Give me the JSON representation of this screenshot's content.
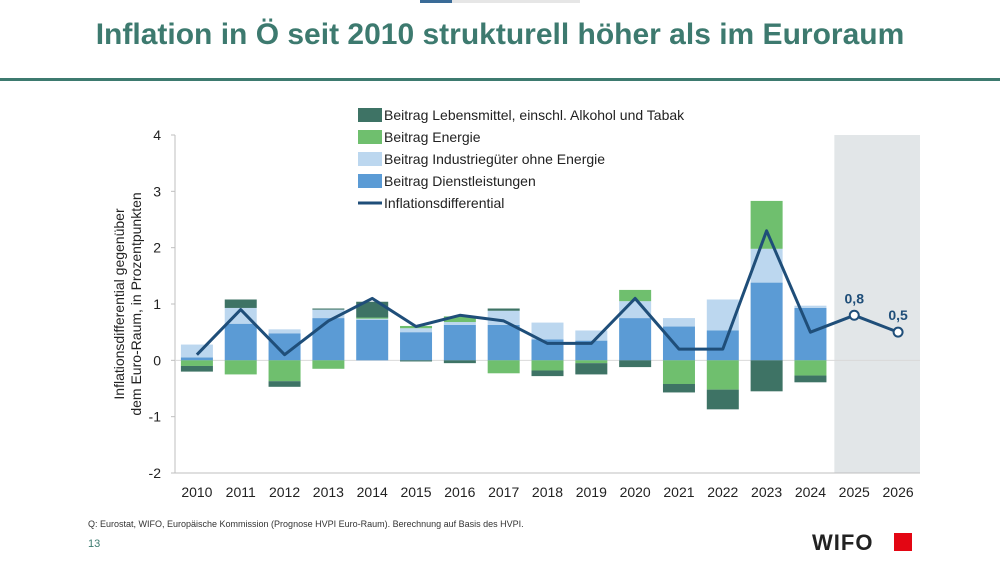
{
  "header": {
    "title": "Inflation in Ö seit 2010 strukturell höher als im Euroraum"
  },
  "footer": {
    "source": "Q: Eurostat, WIFO, Europäische Kommission (Prognose HVPI Euro-Raum). Berechnung auf Basis des HVPI.",
    "page_number": "13",
    "logo_text": "WIFO"
  },
  "colors": {
    "title": "#3d7a6f",
    "food": "#3e7365",
    "energy": "#6fbf6e",
    "industrial": "#bcd7ef",
    "services": "#5b9bd5",
    "line": "#1f4e79",
    "forecast_shade": "#e2e6e8",
    "logo_red": "#e30613"
  },
  "chart_data": {
    "type": "bar",
    "stacked": true,
    "categories": [
      "2010",
      "2011",
      "2012",
      "2013",
      "2014",
      "2015",
      "2016",
      "2017",
      "2018",
      "2019",
      "2020",
      "2021",
      "2022",
      "2023",
      "2024",
      "2025",
      "2026"
    ],
    "series": [
      {
        "name": "Beitrag Lebensmittel, einschl. Alkohol und Tabak",
        "color_key": "food",
        "values": [
          -0.1,
          0.15,
          -0.1,
          0.02,
          0.28,
          -0.02,
          -0.05,
          0.04,
          -0.1,
          -0.2,
          -0.12,
          -0.15,
          -0.35,
          -0.55,
          -0.12,
          null,
          null
        ]
      },
      {
        "name": "Beitrag Energie",
        "color_key": "energy",
        "values": [
          -0.1,
          -0.25,
          -0.37,
          -0.15,
          0.02,
          0.04,
          0.1,
          -0.23,
          -0.18,
          -0.05,
          0.2,
          -0.42,
          -0.52,
          0.85,
          -0.27,
          null,
          null
        ]
      },
      {
        "name": "Beitrag Industriegüter ohne Energie",
        "color_key": "industrial",
        "values": [
          0.23,
          0.28,
          0.07,
          0.15,
          0.02,
          0.07,
          0.05,
          0.25,
          0.3,
          0.18,
          0.3,
          0.15,
          0.55,
          0.6,
          0.04,
          null,
          null
        ]
      },
      {
        "name": "Beitrag Dienstleistungen",
        "color_key": "services",
        "values": [
          0.05,
          0.65,
          0.48,
          0.75,
          0.72,
          0.5,
          0.63,
          0.63,
          0.37,
          0.35,
          0.75,
          0.6,
          0.53,
          1.38,
          0.93,
          null,
          null
        ]
      }
    ],
    "line": {
      "name": "Inflationsdifferential",
      "values": [
        0.1,
        0.9,
        0.1,
        0.7,
        1.1,
        0.6,
        0.8,
        0.7,
        0.3,
        0.3,
        1.1,
        0.2,
        0.2,
        2.3,
        0.5,
        0.8,
        0.5
      ],
      "labels": {
        "2025": "0,8",
        "2026": "0,5"
      }
    },
    "forecast_categories": [
      "2025",
      "2026"
    ],
    "ylabel": "Inflationsdifferential gegenüber dem Euro-Raum, in Prozentpunkten",
    "ylabel_lines": [
      "Inflationsdifferential gegenüber",
      "dem Euro-Raum, in Prozentpunkten"
    ],
    "ylim": [
      -2,
      4
    ],
    "yticks": [
      -2,
      -1,
      0,
      1,
      2,
      3,
      4
    ],
    "legend": "top",
    "grid": false
  }
}
